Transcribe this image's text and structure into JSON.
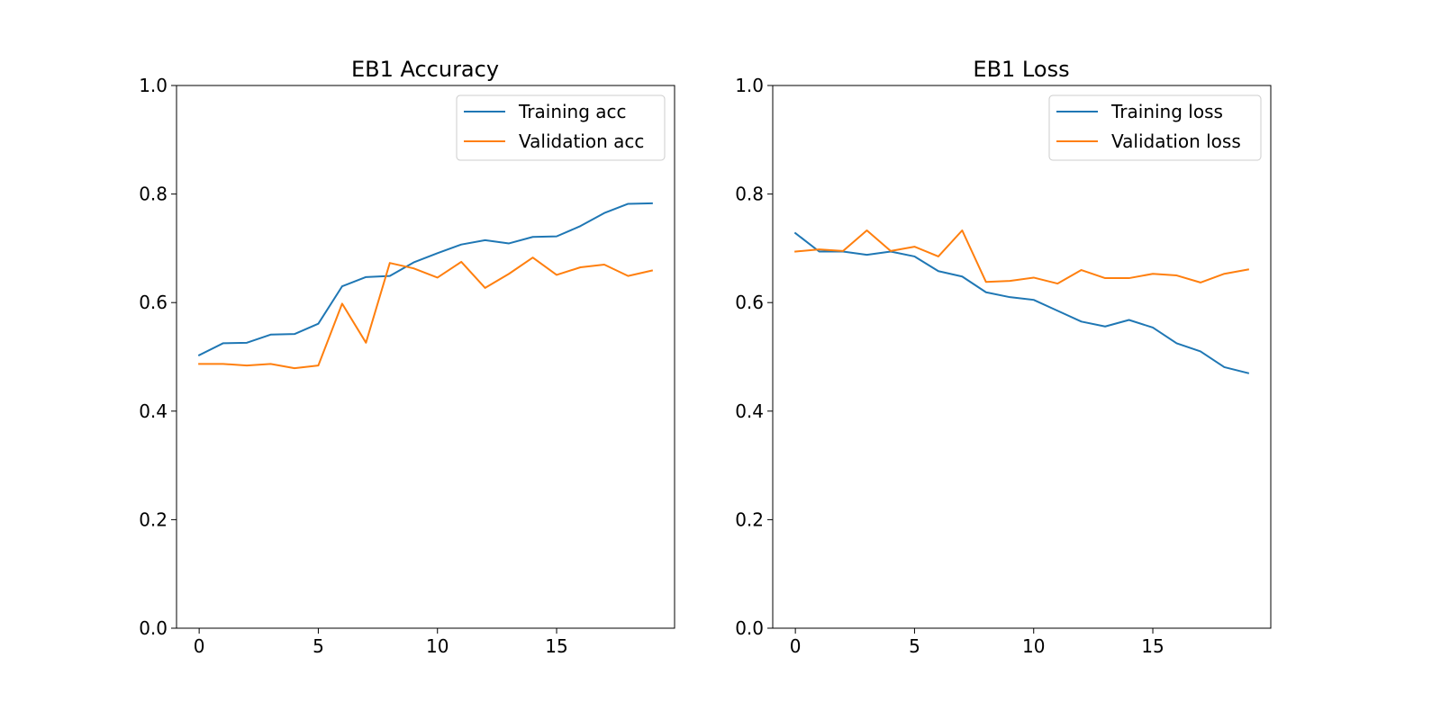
{
  "colors": {
    "series1": "#1f77b4",
    "series2": "#ff7f0e",
    "axis": "#000000",
    "legend_border": "#cccccc"
  },
  "chart_data": [
    {
      "type": "line",
      "title": "EB1 Accuracy",
      "xlabel": "",
      "ylabel": "",
      "xlim": [
        -0.95,
        19.95
      ],
      "ylim": [
        0,
        1
      ],
      "xticks": [
        "0",
        "5",
        "10",
        "15"
      ],
      "yticks": [
        "0.0",
        "0.2",
        "0.4",
        "0.6",
        "0.8",
        "1.0"
      ],
      "x": [
        0,
        1,
        2,
        3,
        4,
        5,
        6,
        7,
        8,
        9,
        10,
        11,
        12,
        13,
        14,
        15,
        16,
        17,
        18,
        19
      ],
      "legend_position": "top-right",
      "grid": false,
      "series": [
        {
          "name": "Training acc",
          "values": [
            0.503,
            0.525,
            0.526,
            0.541,
            0.542,
            0.561,
            0.63,
            0.647,
            0.649,
            0.674,
            0.691,
            0.707,
            0.715,
            0.709,
            0.721,
            0.722,
            0.741,
            0.765,
            0.782,
            0.783
          ]
        },
        {
          "name": "Validation acc",
          "values": [
            0.487,
            0.487,
            0.484,
            0.487,
            0.479,
            0.484,
            0.598,
            0.526,
            0.673,
            0.663,
            0.646,
            0.675,
            0.627,
            0.653,
            0.683,
            0.651,
            0.665,
            0.67,
            0.649,
            0.659
          ]
        }
      ]
    },
    {
      "type": "line",
      "title": "EB1 Loss",
      "xlabel": "",
      "ylabel": "",
      "xlim": [
        -0.95,
        19.95
      ],
      "ylim": [
        0,
        1
      ],
      "xticks": [
        "0",
        "5",
        "10",
        "15"
      ],
      "yticks": [
        "0.0",
        "0.2",
        "0.4",
        "0.6",
        "0.8",
        "1.0"
      ],
      "x": [
        0,
        1,
        2,
        3,
        4,
        5,
        6,
        7,
        8,
        9,
        10,
        11,
        12,
        13,
        14,
        15,
        16,
        17,
        18,
        19
      ],
      "legend_position": "top-right",
      "grid": false,
      "series": [
        {
          "name": "Training loss",
          "values": [
            0.728,
            0.694,
            0.694,
            0.688,
            0.694,
            0.685,
            0.658,
            0.648,
            0.619,
            0.61,
            0.605,
            0.585,
            0.565,
            0.556,
            0.568,
            0.554,
            0.525,
            0.51,
            0.481,
            0.47
          ]
        },
        {
          "name": "Validation loss",
          "values": [
            0.694,
            0.698,
            0.695,
            0.733,
            0.695,
            0.703,
            0.685,
            0.733,
            0.638,
            0.64,
            0.646,
            0.635,
            0.66,
            0.645,
            0.645,
            0.653,
            0.65,
            0.637,
            0.653,
            0.661
          ]
        }
      ]
    }
  ]
}
